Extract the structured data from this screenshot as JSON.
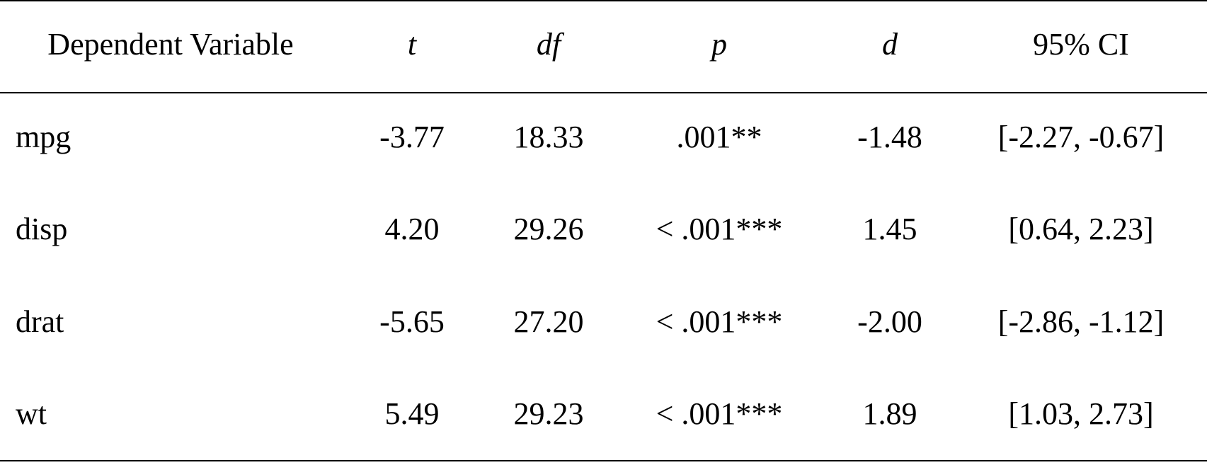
{
  "table": {
    "header": [
      "Dependent Variable",
      "t",
      "df",
      "p",
      "d",
      "95% CI"
    ],
    "rows": [
      [
        "mpg",
        "-3.77",
        "18.33",
        ".001**",
        "-1.48",
        "[-2.27, -0.67]"
      ],
      [
        "disp",
        "4.20",
        "29.26",
        "< .001***",
        "1.45",
        "[0.64, 2.23]"
      ],
      [
        "drat",
        "-5.65",
        "27.20",
        "< .001***",
        "-2.00",
        "[-2.86, -1.12]"
      ],
      [
        "wt",
        "5.49",
        "29.23",
        "< .001***",
        "1.89",
        "[1.03, 2.73]"
      ]
    ]
  }
}
